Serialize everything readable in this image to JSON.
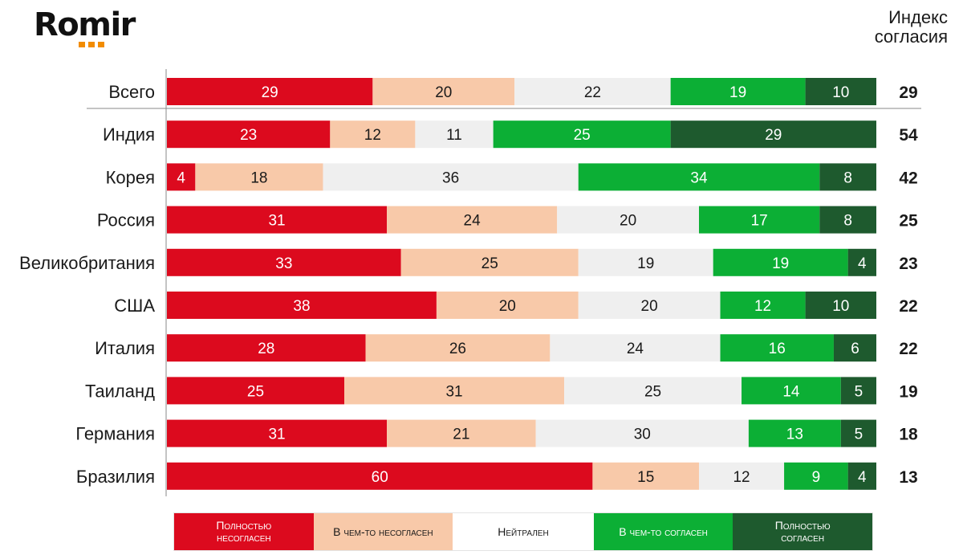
{
  "logo": {
    "text": "Romir"
  },
  "index_title": {
    "line1": "Индекс",
    "line2": "согласия"
  },
  "colors": {
    "full_disagree": "#dc0a1e",
    "some_disagree": "#f8c9a9",
    "neutral": "#efefef",
    "some_agree": "#0caf35",
    "full_agree": "#1e5a2e"
  },
  "chart_data": {
    "type": "bar",
    "orientation": "horizontal",
    "stacked": "100%",
    "categories": [
      "Всего",
      "Индия",
      "Корея",
      "Россия",
      "Великобритания",
      "США",
      "Италия",
      "Таиланд",
      "Германия",
      "Бразилия"
    ],
    "series": [
      {
        "name": "Полностью несогласен",
        "color": "#dc0a1e",
        "values": [
          29,
          23,
          4,
          31,
          33,
          38,
          28,
          25,
          31,
          60
        ]
      },
      {
        "name": "В чем-то несогласен",
        "color": "#f8c9a9",
        "values": [
          20,
          12,
          18,
          24,
          25,
          20,
          26,
          31,
          21,
          15
        ]
      },
      {
        "name": "Нейтрален",
        "color": "#efefef",
        "values": [
          22,
          11,
          36,
          20,
          19,
          20,
          24,
          25,
          30,
          12
        ]
      },
      {
        "name": "В чем-то согласен",
        "color": "#0caf35",
        "values": [
          19,
          25,
          34,
          17,
          19,
          12,
          16,
          14,
          13,
          9
        ]
      },
      {
        "name": "Полностью согласен",
        "color": "#1e5a2e",
        "values": [
          10,
          29,
          8,
          8,
          4,
          10,
          6,
          5,
          5,
          4
        ]
      }
    ],
    "agreement_index": [
      29,
      54,
      42,
      25,
      23,
      22,
      22,
      19,
      18,
      13
    ],
    "legend": [
      {
        "line1": "Полностью",
        "line2": "несогласен",
        "color": "#dc0a1e",
        "text_color": "#ffffff"
      },
      {
        "line1": "В чем-то несогласен",
        "line2": "",
        "color": "#f8c9a9",
        "text_color": "#1a1a1a"
      },
      {
        "line1": "Нейтрален",
        "line2": "",
        "color": "#ffffff",
        "text_color": "#1a1a1a"
      },
      {
        "line1": "В чем-то согласен",
        "line2": "",
        "color": "#0caf35",
        "text_color": "#ffffff"
      },
      {
        "line1": "Полностью",
        "line2": "согласен",
        "color": "#1e5a2e",
        "text_color": "#ffffff"
      }
    ],
    "legend_position": "bottom"
  }
}
